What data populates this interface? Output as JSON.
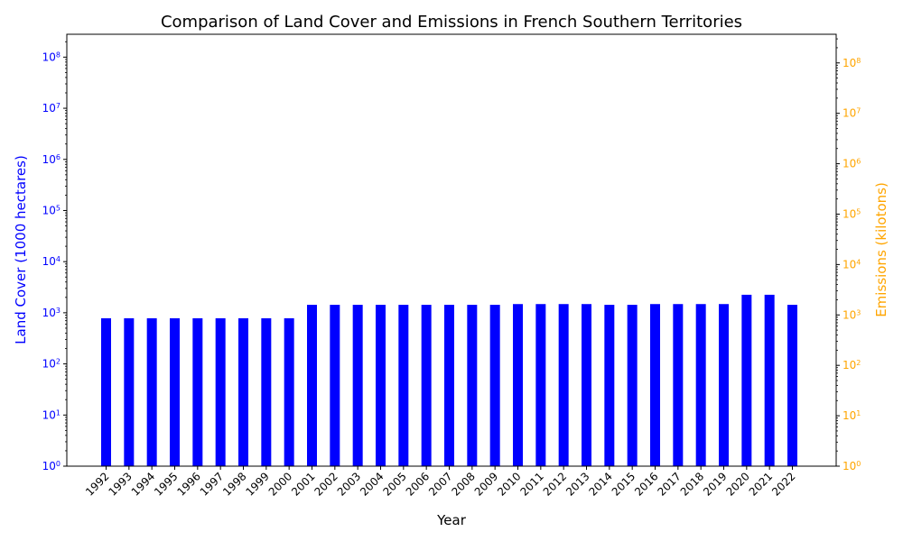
{
  "chart_data": {
    "type": "bar",
    "title": "Comparison of Land Cover and Emissions in French Southern Territories",
    "xlabel": "Year",
    "ylabel_left": "Land Cover (1000 hectares)",
    "ylabel_right": "Emissions (kilotons)",
    "y_scale": "log",
    "ylim_left": [
      1,
      280000000
    ],
    "ylim_right": [
      1,
      370000000
    ],
    "yticks_left": [
      1,
      10,
      100,
      1000,
      10000,
      100000,
      1000000,
      10000000,
      100000000
    ],
    "yticks_right": [
      1,
      10,
      100,
      1000,
      10000,
      100000,
      1000000,
      10000000,
      100000000
    ],
    "categories": [
      "1992",
      "1993",
      "1994",
      "1995",
      "1996",
      "1997",
      "1998",
      "1999",
      "2000",
      "2001",
      "2002",
      "2003",
      "2004",
      "2005",
      "2006",
      "2007",
      "2008",
      "2009",
      "2010",
      "2011",
      "2012",
      "2013",
      "2014",
      "2015",
      "2016",
      "2017",
      "2018",
      "2019",
      "2020",
      "2021",
      "2022"
    ],
    "series": [
      {
        "name": "Land Cover (1000 hectares)",
        "color": "#0000ff",
        "values": [
          780,
          780,
          780,
          780,
          780,
          780,
          780,
          780,
          780,
          1430,
          1430,
          1430,
          1430,
          1430,
          1430,
          1430,
          1430,
          1430,
          1480,
          1480,
          1480,
          1480,
          1430,
          1430,
          1480,
          1480,
          1480,
          1480,
          2250,
          2250,
          1430
        ]
      }
    ],
    "left_axis_color": "#0000ff",
    "right_axis_color": "#ffa500",
    "grid": false,
    "legend": "none"
  }
}
